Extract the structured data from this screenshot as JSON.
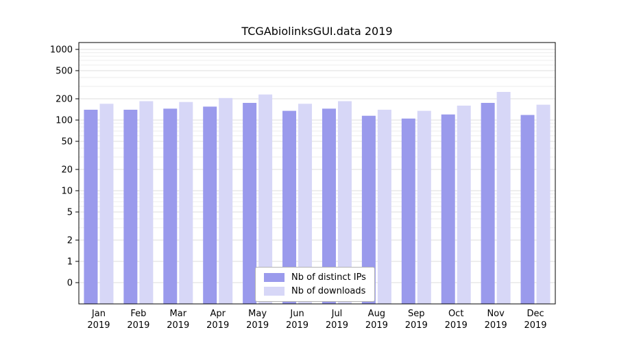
{
  "chart_data": {
    "type": "bar",
    "title": "TCGAbiolinksGUI.data 2019",
    "categories": [
      "Jan",
      "Feb",
      "Mar",
      "Apr",
      "May",
      "Jun",
      "Jul",
      "Aug",
      "Sep",
      "Oct",
      "Nov",
      "Dec"
    ],
    "year": "2019",
    "series": [
      {
        "name": "Nb of distinct IPs",
        "color": "#9a9aec",
        "values": [
          140,
          140,
          145,
          155,
          175,
          135,
          145,
          115,
          105,
          120,
          175,
          118
        ]
      },
      {
        "name": "Nb of downloads",
        "color": "#d7d7f7",
        "values": [
          170,
          185,
          180,
          205,
          230,
          170,
          185,
          140,
          135,
          160,
          250,
          165
        ]
      }
    ],
    "yscale": "log",
    "yticks": [
      0,
      1,
      2,
      5,
      10,
      20,
      50,
      100,
      200,
      500,
      1000
    ],
    "ylim": [
      0,
      1250
    ],
    "xlabel": "",
    "ylabel": "",
    "grid": true,
    "legend_position": "bottom-center",
    "colors": {
      "grid_major": "#dcdcdc",
      "grid_minor": "#ececec",
      "axis": "#000000",
      "background": "#ffffff"
    }
  }
}
